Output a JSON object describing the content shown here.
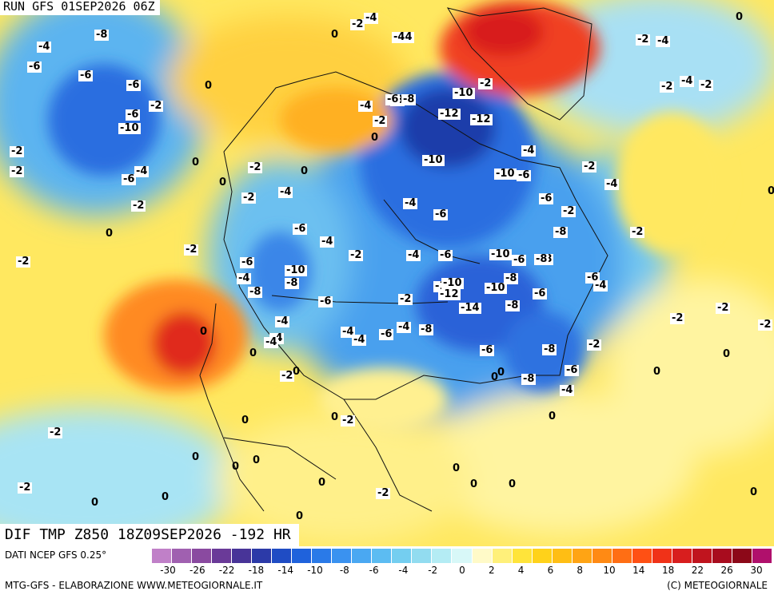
{
  "header": {
    "run_label": "RUN GFS 01SEP2026 06Z",
    "title": "DIF TMP Z850 18Z09SEP2026 -192 HR"
  },
  "footer": {
    "source": "DATI NCEP GFS 0.25°",
    "credit_left": "MTG-GFS - ELABORAZIONE WWW.METEOGIORNALE.IT",
    "credit_right": "(C) METEOGIORNALE"
  },
  "legend": {
    "colors": [
      "#c080c8",
      "#a060b0",
      "#8a4aa0",
      "#6a3a98",
      "#483498",
      "#2c3aa8",
      "#1f4cc4",
      "#1f62dc",
      "#2a7ae8",
      "#3a92f0",
      "#4aa8f2",
      "#5cbcf2",
      "#74cef0",
      "#92dcf0",
      "#b4ecf4",
      "#d8f8f8",
      "#fffac8",
      "#fff07a",
      "#ffe43a",
      "#ffd21a",
      "#ffbe14",
      "#ffa414",
      "#ff8a14",
      "#ff6e14",
      "#ff5014",
      "#f03218",
      "#d81e1e",
      "#c0141e",
      "#a80c1e",
      "#8c0818",
      "#b0106c"
    ],
    "ticks": [
      "-30",
      "-26",
      "-22",
      "-18",
      "-14",
      "-10",
      "-8",
      "-6",
      "-4",
      "-2",
      "0",
      "2",
      "4",
      "6",
      "8",
      "10",
      "14",
      "18",
      "22",
      "26",
      "30"
    ]
  },
  "map": {
    "labels": [
      {
        "v": "-4"
      },
      {
        "v": "-8"
      },
      {
        "v": "-2"
      },
      {
        "v": "-4"
      },
      {
        "v": "0"
      },
      {
        "v": "-44"
      },
      {
        "v": "0"
      },
      {
        "v": "-2"
      },
      {
        "v": "-4"
      },
      {
        "v": "-6"
      },
      {
        "v": "-6"
      },
      {
        "v": "-6"
      },
      {
        "v": "0"
      },
      {
        "v": "-4"
      },
      {
        "v": "-2"
      },
      {
        "v": "-2"
      },
      {
        "v": "-2"
      },
      {
        "v": "-6"
      },
      {
        "v": "-8"
      },
      {
        "v": "-2"
      },
      {
        "v": "-10"
      },
      {
        "v": "-4"
      },
      {
        "v": "-6"
      },
      {
        "v": "-8"
      },
      {
        "v": "-10"
      },
      {
        "v": "-12"
      },
      {
        "v": "-12"
      },
      {
        "v": "-2"
      },
      {
        "v": "0"
      },
      {
        "v": "-10"
      },
      {
        "v": "-4"
      },
      {
        "v": "-2"
      },
      {
        "v": "-2"
      },
      {
        "v": "-6"
      },
      {
        "v": "-4"
      },
      {
        "v": "0"
      },
      {
        "v": "-10"
      },
      {
        "v": "-6"
      },
      {
        "v": "-8"
      },
      {
        "v": "-10"
      },
      {
        "v": "-8"
      },
      {
        "v": "-2"
      },
      {
        "v": "-4"
      },
      {
        "v": "0"
      },
      {
        "v": "-2"
      },
      {
        "v": "0"
      },
      {
        "v": "-2"
      },
      {
        "v": "-4"
      },
      {
        "v": "-4"
      },
      {
        "v": "-6"
      },
      {
        "v": "-6"
      },
      {
        "v": "-2"
      },
      {
        "v": "-2"
      },
      {
        "v": "0"
      },
      {
        "v": "-6"
      },
      {
        "v": "-4"
      },
      {
        "v": "-2"
      },
      {
        "v": "-10"
      },
      {
        "v": "-2"
      },
      {
        "v": "-2"
      },
      {
        "v": "0"
      },
      {
        "v": "-6"
      },
      {
        "v": "-4"
      },
      {
        "v": "-10"
      },
      {
        "v": "-8"
      },
      {
        "v": "-2"
      },
      {
        "v": "-4"
      },
      {
        "v": "-6"
      },
      {
        "v": "-8"
      },
      {
        "v": "-8"
      },
      {
        "v": "-6"
      },
      {
        "v": "-10"
      },
      {
        "v": "-12"
      },
      {
        "v": "-10"
      },
      {
        "v": "-6"
      },
      {
        "v": "-4"
      },
      {
        "v": "-6"
      },
      {
        "v": "-2"
      },
      {
        "v": "-14"
      },
      {
        "v": "-8"
      },
      {
        "v": "-2"
      },
      {
        "v": "-8"
      },
      {
        "v": "-2"
      },
      {
        "v": "-6"
      },
      {
        "v": "-4"
      },
      {
        "v": "0"
      },
      {
        "v": "-4"
      },
      {
        "v": "-6"
      },
      {
        "v": "-4"
      },
      {
        "v": "-8"
      },
      {
        "v": "-6"
      },
      {
        "v": "-4"
      },
      {
        "v": "-8"
      },
      {
        "v": "-2"
      },
      {
        "v": "0"
      },
      {
        "v": "0"
      },
      {
        "v": "-4"
      },
      {
        "v": "-4"
      },
      {
        "v": "0"
      },
      {
        "v": "-2"
      },
      {
        "v": "0"
      },
      {
        "v": "-8"
      },
      {
        "v": "-6"
      },
      {
        "v": "-4"
      },
      {
        "v": "0"
      },
      {
        "v": "0"
      },
      {
        "v": "-2"
      },
      {
        "v": "0"
      },
      {
        "v": "-2"
      },
      {
        "v": "0"
      },
      {
        "v": "-2"
      },
      {
        "v": "0"
      },
      {
        "v": "0"
      },
      {
        "v": "0"
      },
      {
        "v": "0"
      },
      {
        "v": "0"
      },
      {
        "v": "0"
      },
      {
        "v": "-2"
      },
      {
        "v": "0"
      },
      {
        "v": "0"
      },
      {
        "v": "0"
      },
      {
        "v": "-2"
      },
      {
        "v": "0"
      },
      {
        "v": "0"
      },
      {
        "v": "0"
      }
    ]
  }
}
